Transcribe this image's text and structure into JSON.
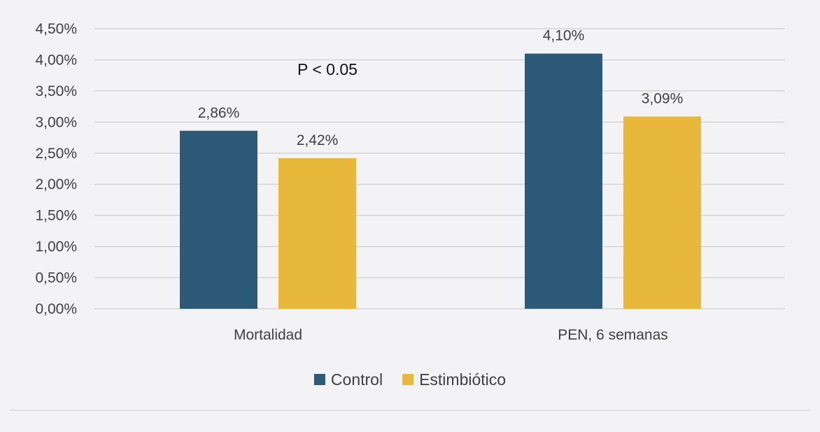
{
  "chart_data": {
    "type": "bar",
    "title": "",
    "xlabel": "",
    "ylabel": "",
    "categories": [
      "Mortalidad",
      "PEN, 6 semanas"
    ],
    "series": [
      {
        "name": "Control",
        "values": [
          2.86,
          4.1
        ],
        "labels": [
          "2,86%",
          "4,10%"
        ],
        "color": "#2e5a7a"
      },
      {
        "name": "Estimbiótico",
        "values": [
          2.42,
          3.09
        ],
        "labels": [
          "2,42%",
          "3,09%"
        ],
        "color": "#e8b83c"
      }
    ],
    "ylim": [
      0,
      4.5
    ],
    "ytick_step": 0.5,
    "ytick_labels": [
      "0,00%",
      "0,50%",
      "1,00%",
      "1,50%",
      "2,00%",
      "2,50%",
      "3,00%",
      "3,50%",
      "4,00%",
      "4,50%"
    ],
    "grid": true,
    "legend_position": "bottom-center",
    "annotations": [
      {
        "text": "P < 0.05",
        "category": "Mortalidad",
        "y": 3.85
      }
    ]
  }
}
